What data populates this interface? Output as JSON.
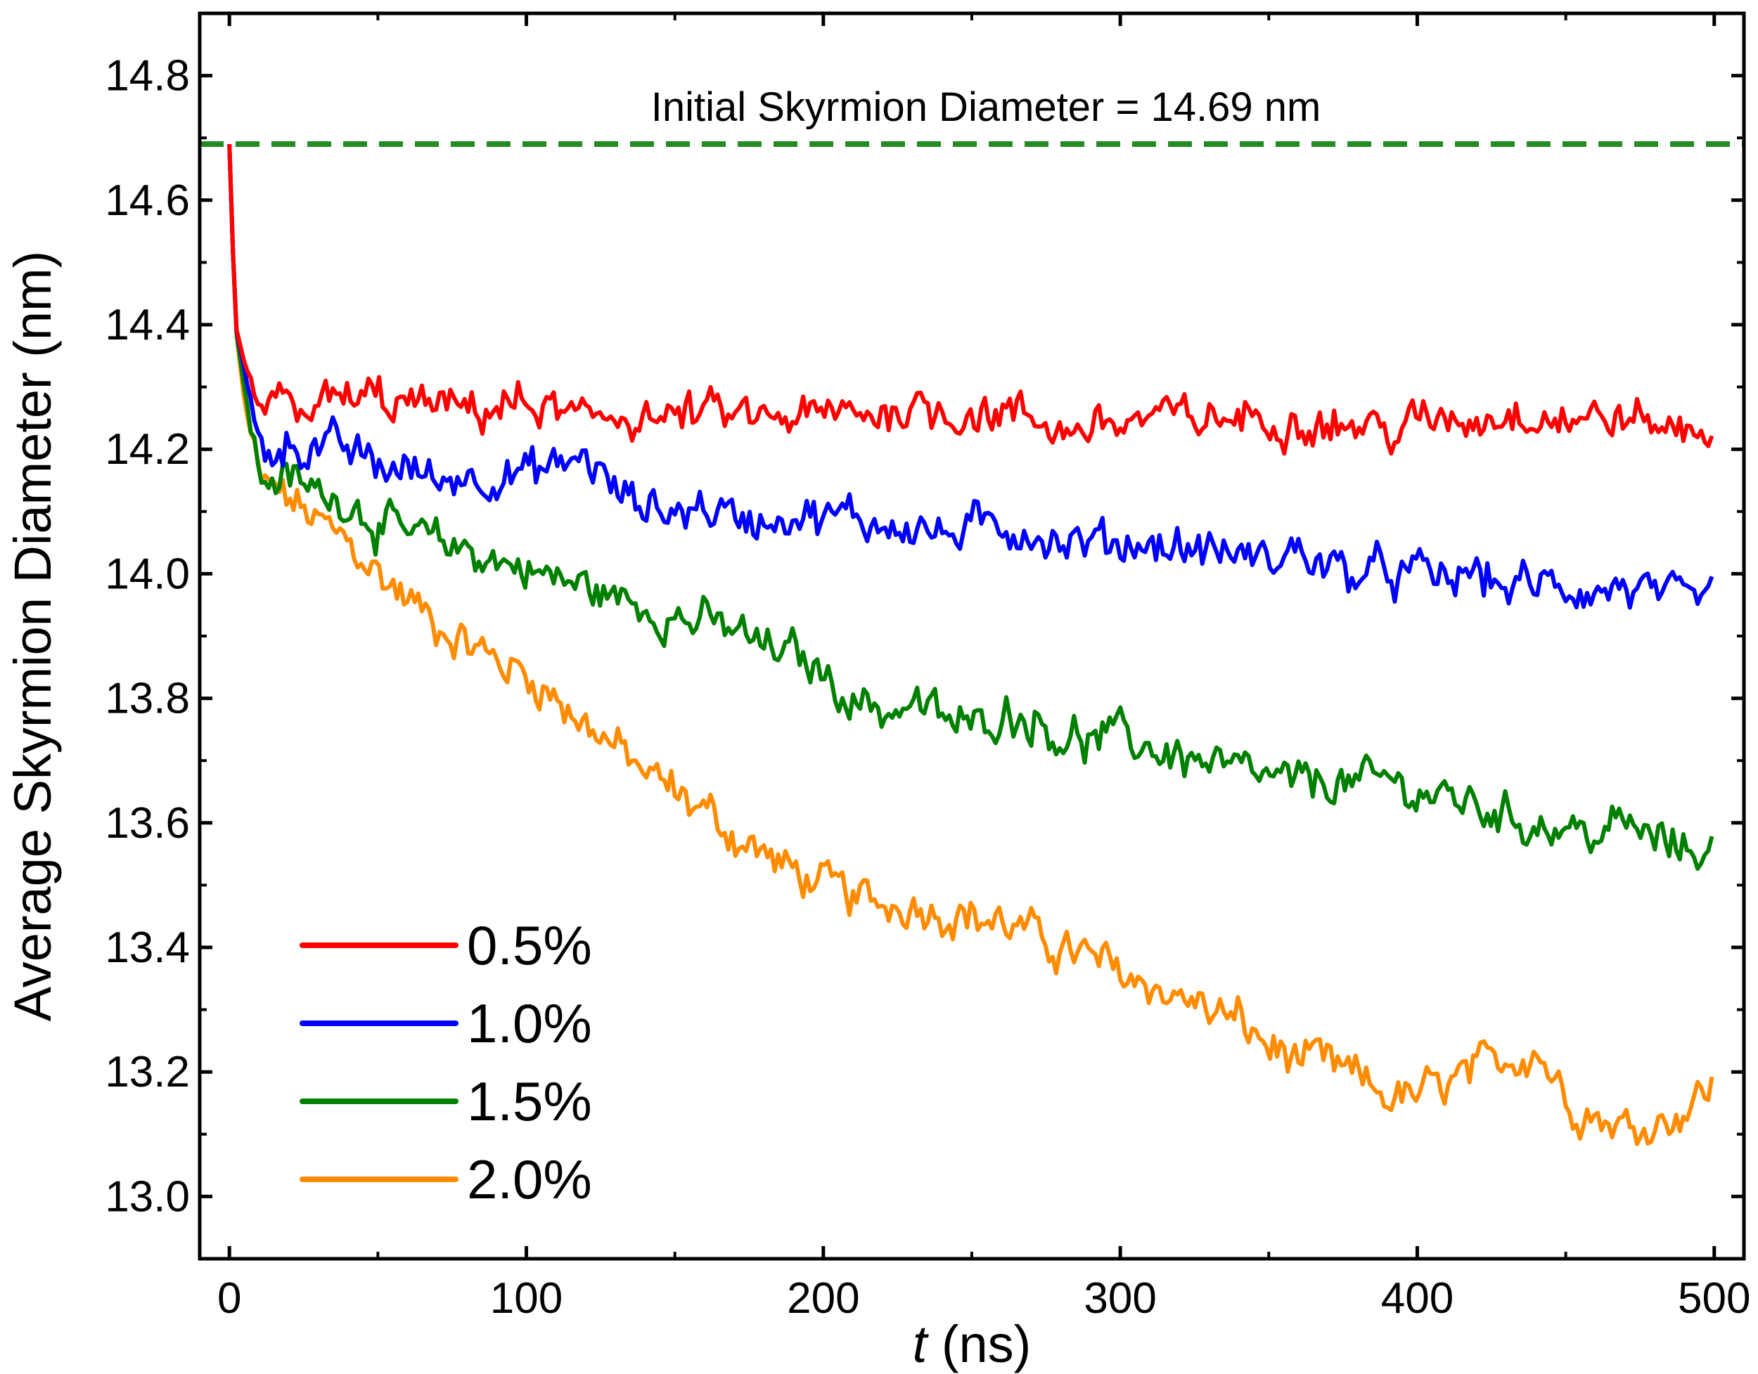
{
  "colors": {
    "s05": "#ff0000",
    "s10": "#0000ff",
    "s15": "#008000",
    "s20": "#ff8c00",
    "reference": "#228b22",
    "axis": "#000000"
  },
  "chart_data": {
    "type": "line",
    "title": "",
    "xlabel_italic": "t",
    "xlabel_unit": "(ns)",
    "ylabel": "Average Skyrmion Diameter (nm)",
    "xlim": [
      -10,
      510
    ],
    "ylim": [
      12.9,
      14.9
    ],
    "x_ticks": [
      0,
      100,
      200,
      300,
      400,
      500
    ],
    "x_tick_labels": [
      "0",
      "100",
      "200",
      "300",
      "400",
      "500"
    ],
    "y_ticks": [
      13.0,
      13.2,
      13.4,
      13.6,
      13.8,
      14.0,
      14.2,
      14.4,
      14.6,
      14.8
    ],
    "y_tick_labels": [
      "13.0",
      "13.2",
      "13.4",
      "13.6",
      "13.8",
      "14.0",
      "14.2",
      "14.4",
      "14.6",
      "14.8"
    ],
    "reference_line": {
      "y": 14.69,
      "style": "dashed",
      "label": "Initial Skyrmion Diameter = 14.69 nm"
    },
    "legend_position": "bottom-left",
    "series": [
      {
        "name": "0.5%",
        "color_key": "s05",
        "x": [
          0,
          2,
          5,
          10,
          20,
          30,
          40,
          50,
          60,
          70,
          80,
          90,
          100,
          110,
          120,
          130,
          140,
          150,
          160,
          170,
          180,
          190,
          200,
          210,
          220,
          230,
          240,
          250,
          260,
          270,
          280,
          290,
          300,
          310,
          320,
          330,
          340,
          350,
          360,
          370,
          380,
          390,
          400,
          410,
          420,
          430,
          440,
          450,
          460,
          470,
          480,
          490,
          500
        ],
        "values": [
          14.69,
          14.4,
          14.34,
          14.27,
          14.27,
          14.27,
          14.28,
          14.28,
          14.27,
          14.27,
          14.26,
          14.27,
          14.27,
          14.26,
          14.24,
          14.26,
          14.25,
          14.25,
          14.26,
          14.25,
          14.25,
          14.25,
          14.25,
          14.26,
          14.26,
          14.27,
          14.26,
          14.26,
          14.26,
          14.25,
          14.23,
          14.24,
          14.24,
          14.25,
          14.25,
          14.25,
          14.25,
          14.25,
          14.25,
          14.24,
          14.24,
          14.23,
          14.24,
          14.25,
          14.25,
          14.26,
          14.26,
          14.25,
          14.25,
          14.25,
          14.24,
          14.23,
          14.24
        ]
      },
      {
        "name": "1.0%",
        "color_key": "s10",
        "x": [
          0,
          2,
          5,
          10,
          20,
          30,
          40,
          50,
          60,
          70,
          80,
          90,
          100,
          110,
          120,
          130,
          140,
          150,
          160,
          170,
          180,
          190,
          200,
          210,
          220,
          230,
          240,
          250,
          260,
          270,
          280,
          290,
          300,
          310,
          320,
          330,
          340,
          350,
          360,
          370,
          380,
          390,
          400,
          410,
          420,
          430,
          440,
          450,
          460,
          470,
          480,
          490,
          500
        ],
        "values": [
          14.69,
          14.4,
          14.33,
          14.2,
          14.21,
          14.2,
          14.2,
          14.17,
          14.17,
          14.15,
          14.16,
          14.16,
          14.16,
          14.17,
          14.19,
          14.13,
          14.11,
          14.1,
          14.11,
          14.09,
          14.09,
          14.1,
          14.09,
          14.09,
          14.08,
          14.08,
          14.06,
          14.07,
          14.08,
          14.07,
          14.05,
          14.05,
          14.05,
          14.05,
          14.04,
          14.04,
          14.03,
          14.02,
          14.04,
          14.01,
          14.0,
          14.0,
          14.0,
          13.99,
          14.0,
          13.98,
          13.98,
          13.98,
          13.97,
          13.98,
          13.96,
          13.95,
          13.96
        ]
      },
      {
        "name": "1.5%",
        "color_key": "s15",
        "x": [
          0,
          2,
          5,
          10,
          20,
          30,
          40,
          50,
          60,
          70,
          80,
          90,
          100,
          110,
          120,
          130,
          140,
          150,
          160,
          170,
          180,
          190,
          200,
          210,
          220,
          230,
          240,
          250,
          260,
          270,
          280,
          290,
          300,
          310,
          320,
          330,
          340,
          350,
          360,
          370,
          380,
          390,
          400,
          410,
          420,
          430,
          440,
          450,
          460,
          470,
          480,
          490,
          500
        ],
        "values": [
          14.69,
          14.4,
          14.3,
          14.16,
          14.15,
          14.13,
          14.12,
          14.08,
          14.06,
          14.05,
          14.04,
          14.02,
          14.01,
          13.99,
          13.98,
          13.96,
          13.95,
          13.93,
          13.92,
          13.91,
          13.88,
          13.87,
          13.84,
          13.8,
          13.78,
          13.79,
          13.77,
          13.75,
          13.78,
          13.77,
          13.74,
          13.73,
          13.74,
          13.72,
          13.71,
          13.69,
          13.68,
          13.67,
          13.66,
          13.67,
          13.66,
          13.67,
          13.65,
          13.64,
          13.63,
          13.61,
          13.6,
          13.59,
          13.58,
          13.6,
          13.57,
          13.56,
          13.56
        ]
      },
      {
        "name": "2.0%",
        "color_key": "s20",
        "x": [
          0,
          2,
          5,
          10,
          20,
          30,
          40,
          50,
          60,
          70,
          80,
          90,
          100,
          110,
          120,
          130,
          140,
          150,
          160,
          170,
          180,
          190,
          200,
          210,
          220,
          230,
          240,
          250,
          260,
          270,
          280,
          290,
          300,
          310,
          320,
          330,
          340,
          350,
          360,
          370,
          380,
          390,
          400,
          410,
          420,
          430,
          440,
          450,
          460,
          470,
          480,
          490,
          500
        ],
        "values": [
          14.69,
          14.4,
          14.28,
          14.15,
          14.12,
          14.08,
          14.05,
          14.0,
          13.96,
          13.92,
          13.89,
          13.86,
          13.84,
          13.8,
          13.76,
          13.72,
          13.68,
          13.65,
          13.62,
          13.58,
          13.55,
          13.52,
          13.5,
          13.48,
          13.47,
          13.47,
          13.46,
          13.45,
          13.44,
          13.42,
          13.4,
          13.38,
          13.36,
          13.34,
          13.32,
          13.3,
          13.28,
          13.24,
          13.22,
          13.21,
          13.19,
          13.16,
          13.16,
          13.18,
          13.2,
          13.22,
          13.24,
          13.16,
          13.13,
          13.11,
          13.12,
          13.14,
          13.18
        ]
      }
    ]
  }
}
